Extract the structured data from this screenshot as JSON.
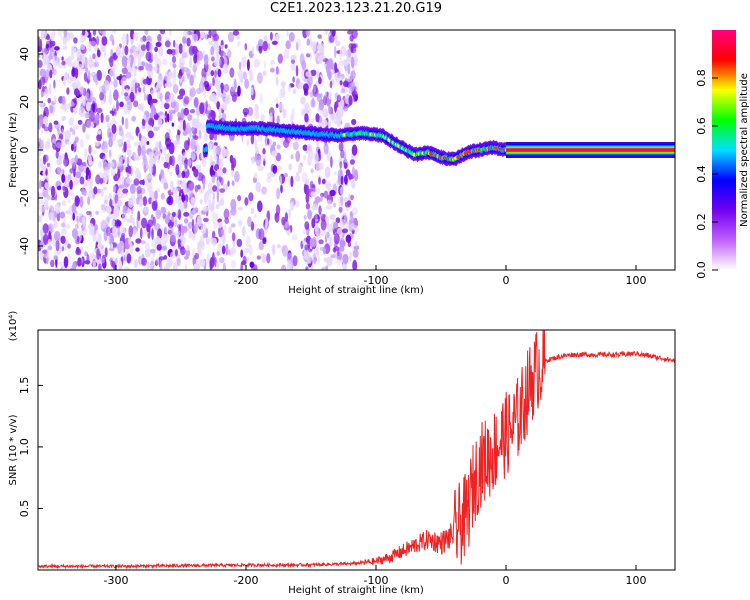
{
  "title": "C2E1.2023.123.21.20.G19",
  "chart_data": [
    {
      "type": "heatmap",
      "xlabel": "Height of straight line (km)",
      "ylabel": "Frequency (Hz)",
      "xlim": [
        -360,
        130
      ],
      "ylim": [
        -50,
        50
      ],
      "x_ticks": [
        -300,
        -200,
        -100,
        0,
        100
      ],
      "y_ticks": [
        40,
        20,
        0,
        -20,
        -40
      ],
      "colorbar": {
        "label": "Normalized spectral amplitude",
        "range": [
          0.0,
          1.0
        ],
        "ticks": [
          0.0,
          0.2,
          0.4,
          0.6,
          0.8
        ],
        "colors": [
          "#ffffff",
          "#c060ff",
          "#7000f0",
          "#0000ff",
          "#00e0ff",
          "#00ff00",
          "#ffff00",
          "#ff0000",
          "#ff0080"
        ]
      },
      "signal_track": {
        "x": [
          -230,
          -210,
          -190,
          -170,
          -150,
          -130,
          -110,
          -95,
          -80,
          -70,
          -60,
          -50,
          -40,
          -30,
          -20,
          -10,
          0,
          20,
          60,
          100,
          130
        ],
        "frequency": [
          10,
          9,
          9,
          8,
          7,
          6,
          7,
          6,
          1,
          -2,
          -1,
          -3,
          -4,
          -1,
          0,
          1,
          0,
          0,
          0,
          0,
          0
        ]
      }
    },
    {
      "type": "line",
      "xlabel": "Height of straight line (km)",
      "ylabel": "SNR (10 * v/v)",
      "y_multiplier": "(x10⁴)",
      "xlim": [
        -360,
        130
      ],
      "ylim": [
        0,
        1.95
      ],
      "x_ticks": [
        -300,
        -200,
        -100,
        0,
        100
      ],
      "y_ticks": [
        0.5,
        1.0,
        1.5
      ],
      "series": [
        {
          "color": "#ee2222",
          "x": [
            -360,
            -300,
            -200,
            -160,
            -120,
            -100,
            -90,
            -80,
            -70,
            -60,
            -50,
            -45,
            -40,
            -30,
            -25,
            -20,
            -15,
            -10,
            -5,
            0,
            5,
            10,
            15,
            20,
            25,
            30,
            40,
            50,
            60,
            70,
            80,
            90,
            100,
            110,
            120,
            130
          ],
          "values": [
            0.03,
            0.03,
            0.04,
            0.04,
            0.05,
            0.07,
            0.1,
            0.15,
            0.2,
            0.25,
            0.22,
            0.25,
            0.3,
            0.45,
            0.7,
            0.85,
            0.9,
            0.95,
            1.05,
            1.1,
            1.15,
            1.25,
            1.4,
            1.55,
            1.65,
            1.7,
            1.73,
            1.75,
            1.75,
            1.75,
            1.75,
            1.75,
            1.76,
            1.74,
            1.72,
            1.7
          ]
        }
      ]
    }
  ]
}
